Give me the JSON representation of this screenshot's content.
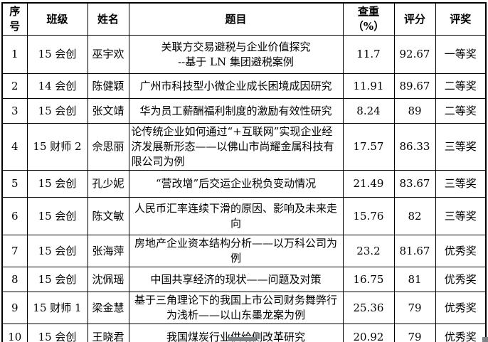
{
  "header": {
    "no": "序号",
    "class": "班级",
    "name": "姓名",
    "title": "题目",
    "dup_main": "查重",
    "dup_suffix": "（%）",
    "score": "评分",
    "award": "评奖"
  },
  "rows": [
    {
      "no": "1",
      "class": "15 会创",
      "name": "巫宇欢",
      "title": "关联方交易避税与企业价值探究\n--基于 LN 集团避税案例",
      "title_align": "center",
      "dup": "11.7",
      "score": "92.67",
      "award": "一等奖"
    },
    {
      "no": "2",
      "class": "14 会创",
      "name": "陈健颖",
      "title": "广州市科技型小微企业成长困境成因研究",
      "title_align": "center",
      "dup": "11.91",
      "score": "89.67",
      "award": "二等奖"
    },
    {
      "no": "3",
      "class": "15 会创",
      "name": "张文靖",
      "title": "华为员工薪酬福利制度的激励有效性研究",
      "title_align": "center",
      "dup": "8.24",
      "score": "89",
      "award": "二等奖"
    },
    {
      "no": "4",
      "class": "15 财师 2",
      "name": "佘思丽",
      "title": "论传统企业如何通过“+互联网”实现企业经济发展新形态——以佛山市尚耀金属科技有限公司为例",
      "title_align": "left",
      "dup": "17.57",
      "score": "86.33",
      "award": "三等奖"
    },
    {
      "no": "5",
      "class": "15 会创",
      "name": "孔少妮",
      "title": "“营改增”后交运企业税负变动情况",
      "title_align": "center",
      "dup": "21.49",
      "score": "83.67",
      "award": "三等奖"
    },
    {
      "no": "6",
      "class": "15 会创",
      "name": "陈文敏",
      "title": "人民币汇率连续下滑的原因、影响及未来走向",
      "title_align": "center",
      "dup": "15.76",
      "score": "82",
      "award": "三等奖"
    },
    {
      "no": "7",
      "class": "15 会创",
      "name": "张海萍",
      "title": "房地产企业资本结构分析——以万科公司为例",
      "title_align": "center",
      "dup": "23.2",
      "score": "81.67",
      "award": "优秀奖"
    },
    {
      "no": "8",
      "class": "15 会创",
      "name": "沈佩瑶",
      "title": "中国共享经济的现状——问题及对策",
      "title_align": "center",
      "dup": "16.75",
      "score": "81",
      "award": "优秀奖"
    },
    {
      "no": "9",
      "class": "15 财师 1",
      "name": "梁金慧",
      "title": "基于三角理论下的我国上市公司财务舞弊行为浅析——以山东墨龙案为例",
      "title_align": "center",
      "dup": "25.36",
      "score": "79",
      "award": "优秀奖"
    },
    {
      "no": "10",
      "class": "15 会创",
      "name": "王晓君",
      "title": "我国煤炭行业供给侧改革研究",
      "title_align": "center",
      "dup": "20.92",
      "score": "79",
      "award": "优秀奖"
    }
  ],
  "colors": {
    "border": "#000000",
    "background": "#ffffff",
    "artifact_gray": "#7f8588"
  }
}
